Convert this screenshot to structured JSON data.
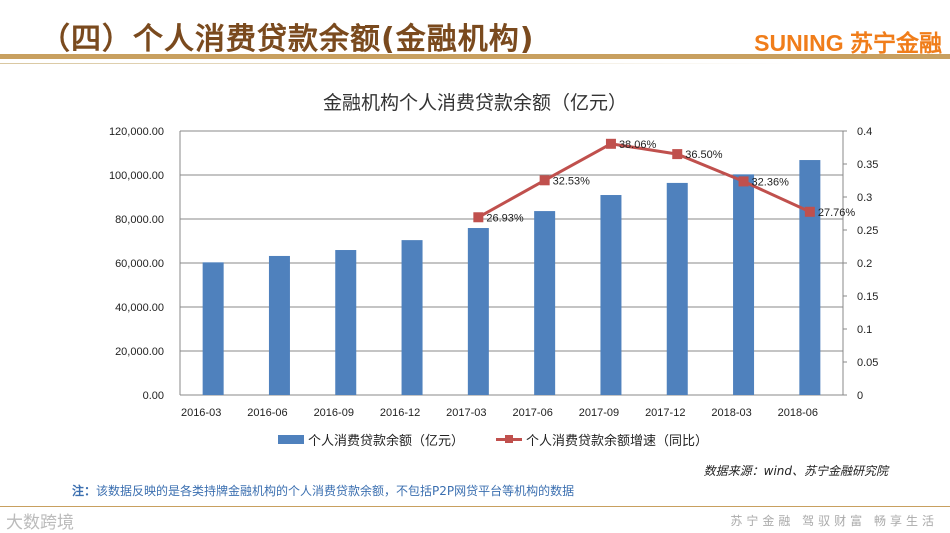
{
  "header": {
    "title": "（四）个人消费贷款余额(金融机构)",
    "brand": "SUNING 苏宁金融"
  },
  "chart_data": {
    "type": "bar+line",
    "title": "金融机构个人消费贷款余额（亿元）",
    "categories": [
      "2016-03",
      "2016-06",
      "2016-09",
      "2016-12",
      "2017-03",
      "2017-06",
      "2017-09",
      "2017-12",
      "2018-03",
      "2018-06"
    ],
    "series": [
      {
        "name": "个人消费贷款余额（亿元）",
        "type": "bar",
        "axis": "left",
        "color": "#4f81bd",
        "values": [
          60300,
          63200,
          65900,
          70400,
          75900,
          83600,
          90900,
          96400,
          100300,
          106800
        ]
      },
      {
        "name": "个人消费贷款余额增速（同比）",
        "type": "line",
        "axis": "right",
        "color": "#c0504d",
        "values": [
          null,
          null,
          null,
          null,
          0.2693,
          0.3253,
          0.3806,
          0.365,
          0.3236,
          0.2776
        ],
        "labels": [
          null,
          null,
          null,
          null,
          "26.93%",
          "32.53%",
          "38.06%",
          "36.50%",
          "32.36%",
          "27.76%"
        ]
      }
    ],
    "left_axis": {
      "ylim": [
        0,
        120000
      ],
      "ticks": [
        "0.00",
        "20,000.00",
        "40,000.00",
        "60,000.00",
        "80,000.00",
        "100,000.00",
        "120,000.00"
      ]
    },
    "right_axis": {
      "ylim": [
        0,
        0.4
      ],
      "ticks": [
        "0",
        "0.05",
        "0.1",
        "0.15",
        "0.2",
        "0.25",
        "0.3",
        "0.35",
        "0.4"
      ]
    },
    "grid": true,
    "legend": "bottom"
  },
  "note": {
    "label": "注：",
    "text": "该数据反映的是各类持牌金融机构的个人消费贷款余额，不包括P2P网贷平台等机构的数据"
  },
  "source": "数据来源：wind、苏宁金融研究院",
  "footer": {
    "logo": "大数跨境",
    "slogan": "苏宁金融 驾驭财富 畅享生活"
  }
}
